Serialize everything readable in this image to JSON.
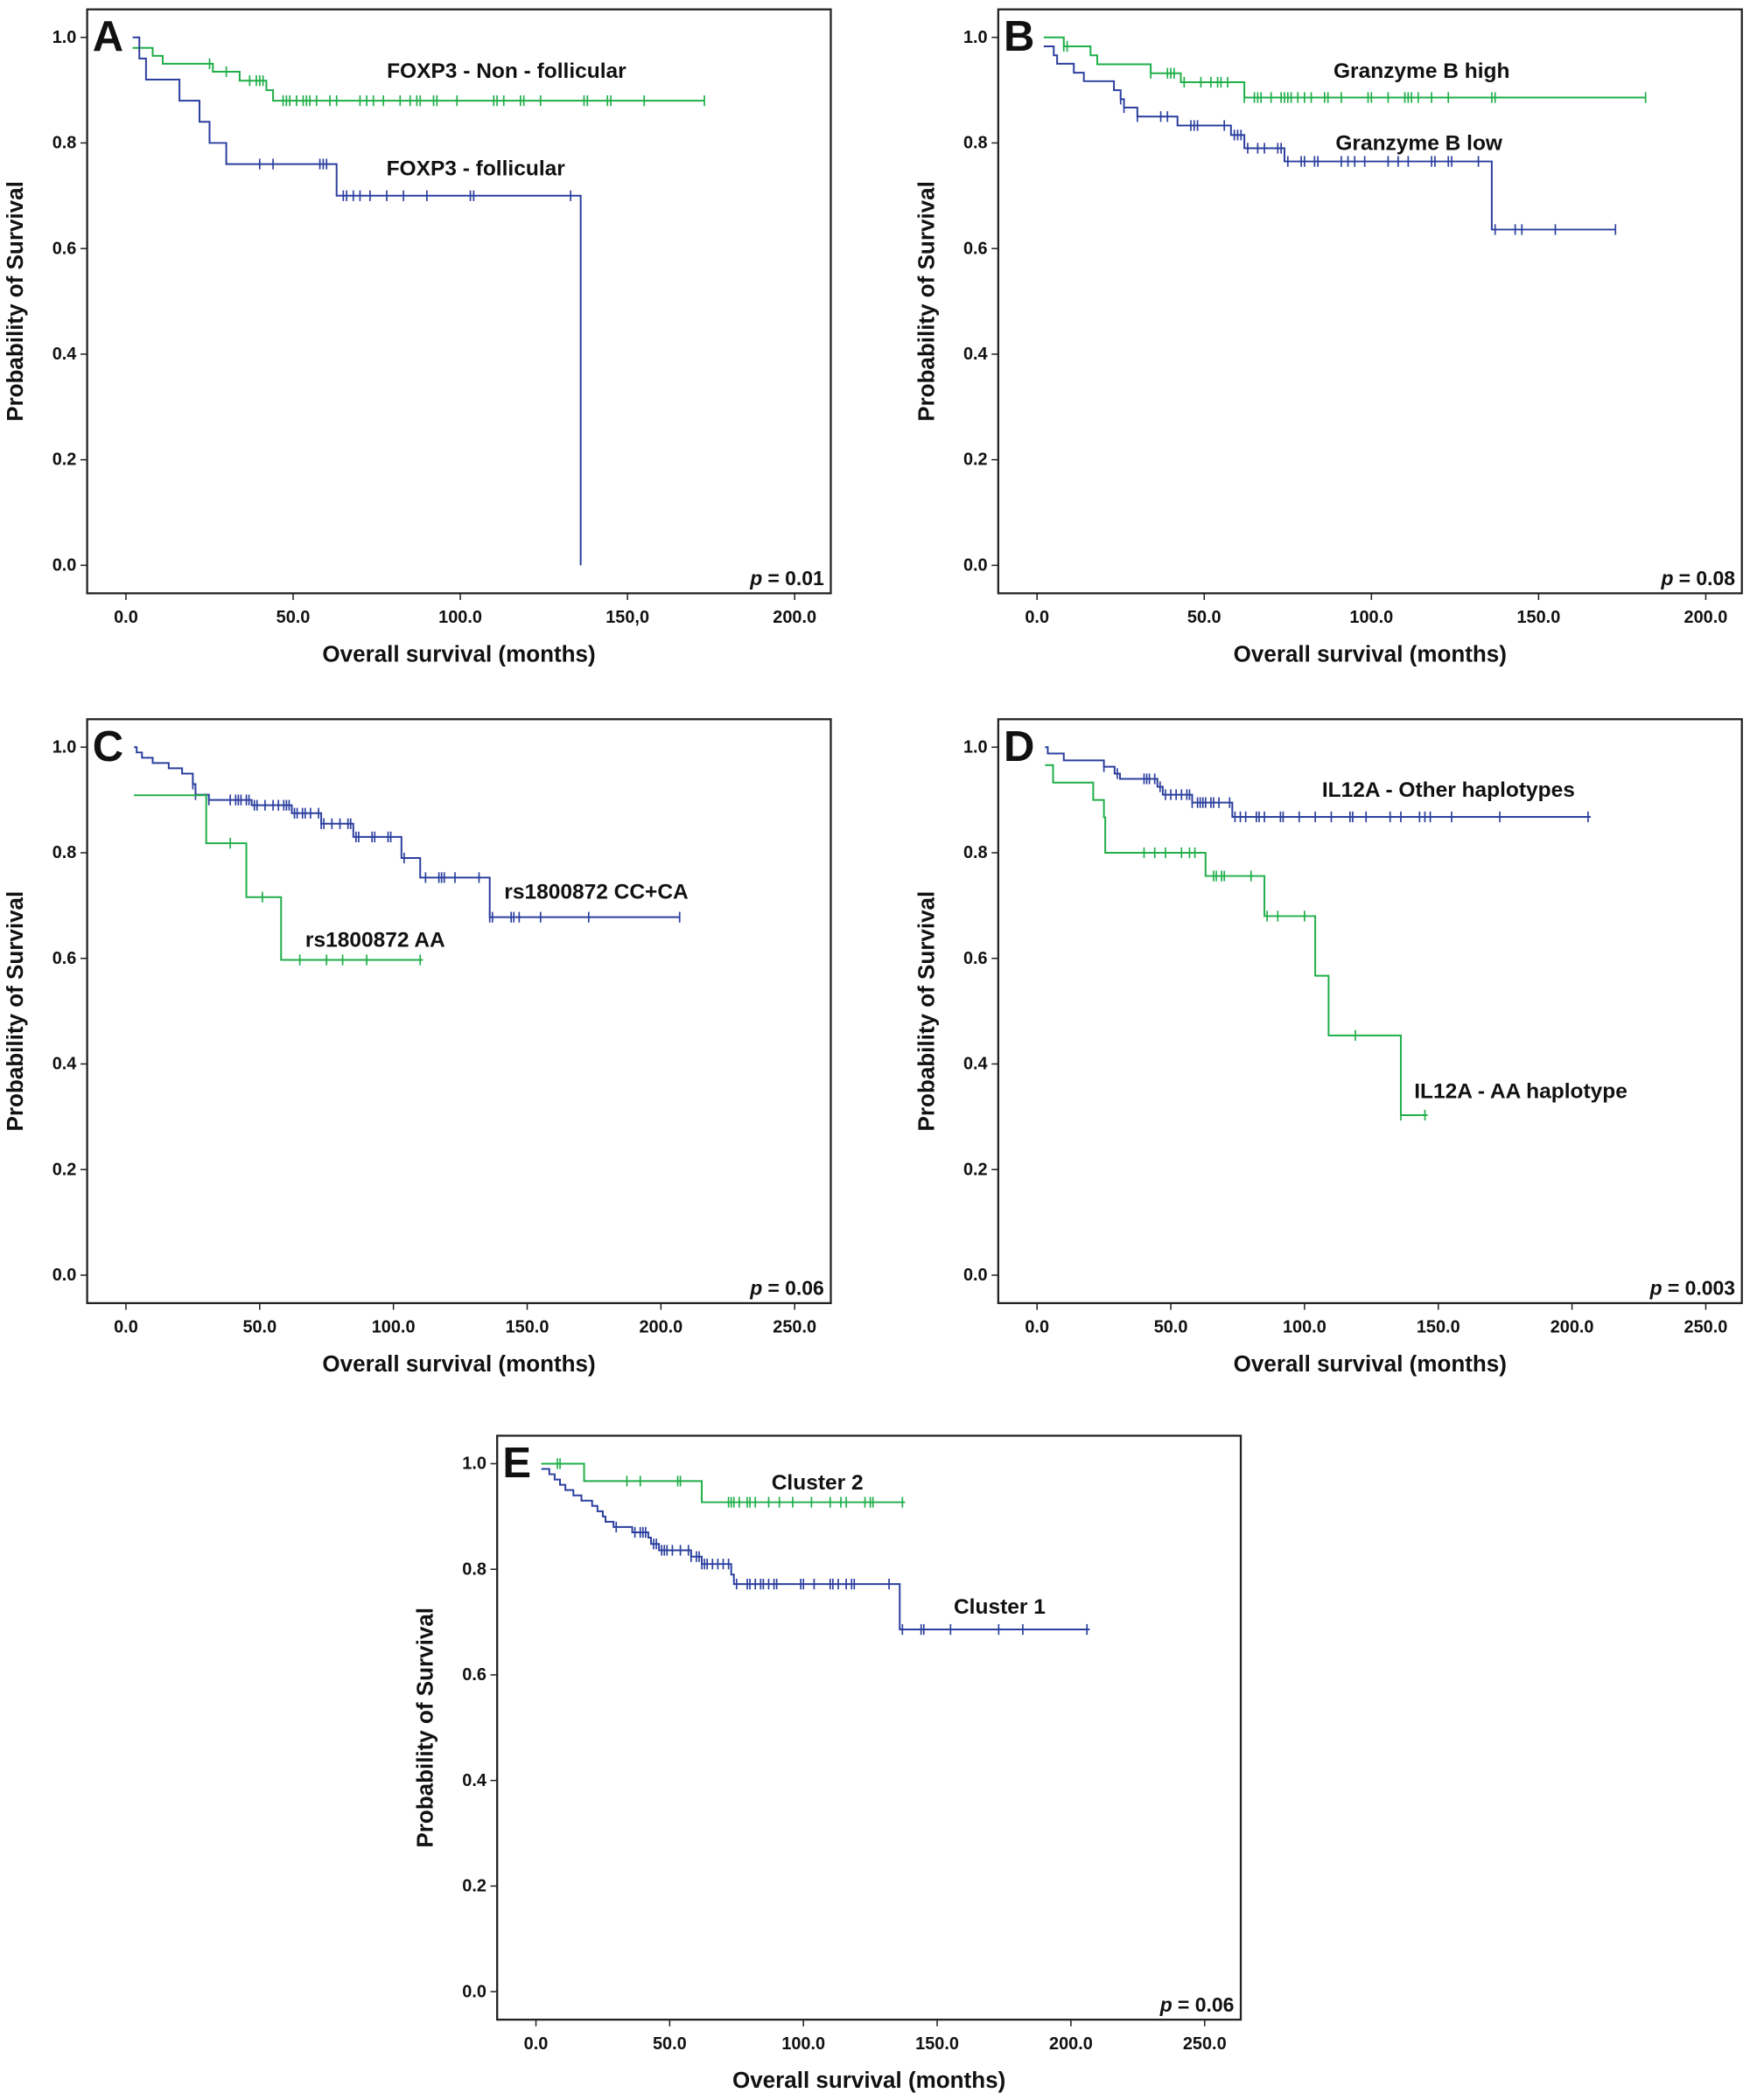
{
  "colors": {
    "green": "#1fae48",
    "blue": "#2b3f9e",
    "frame": "#222222"
  },
  "chart_data": [
    {
      "type": "line",
      "panel": "A",
      "p_value_prefix": "p",
      "p_value": "= 0.01",
      "xlabel": "Overall survival (months)",
      "ylabel": "Probability of Survival",
      "xlim": [
        -11.6,
        210.8
      ],
      "ylim": [
        -0.053,
        1.053
      ],
      "x_ticks": [
        0,
        50,
        100,
        150,
        200
      ],
      "x_tick_labels": [
        "0.0",
        "50.0",
        "100.0",
        "150,0",
        "200.0"
      ],
      "y_ticks": [
        0,
        0.2,
        0.4,
        0.6,
        0.8,
        1.0
      ],
      "y_tick_labels": [
        "0.0",
        "0.2",
        "0.4",
        "0.6",
        "0.8",
        "1.0"
      ],
      "series": [
        {
          "name": "FOXP3 - Non - follicular",
          "color": "green",
          "steps": [
            [
              2,
              0.98
            ],
            [
              8,
              0.965
            ],
            [
              11,
              0.95
            ],
            [
              26,
              0.935
            ],
            [
              34,
              0.918
            ],
            [
              42,
              0.9
            ],
            [
              44,
              0.88
            ]
          ],
          "end": 173,
          "censored": [
            25,
            30,
            37,
            39,
            40,
            41,
            47,
            48,
            49,
            51,
            53,
            54,
            55,
            57,
            61,
            63,
            70,
            72,
            74,
            77,
            82,
            85,
            87,
            88,
            92,
            93,
            99,
            110,
            111,
            113,
            118,
            119,
            124,
            137,
            138,
            144,
            145,
            155,
            173
          ]
        },
        {
          "name": "FOXP3 - follicular",
          "color": "blue",
          "steps": [
            [
              2,
              1.0
            ],
            [
              4,
              0.96
            ],
            [
              6,
              0.92
            ],
            [
              16,
              0.88
            ],
            [
              22,
              0.84
            ],
            [
              25,
              0.8
            ],
            [
              30,
              0.76
            ],
            [
              63,
              0.7
            ],
            [
              136,
              0.0
            ]
          ],
          "end": 136,
          "censored": [
            40,
            44,
            58,
            59,
            60,
            65,
            66,
            68,
            70,
            73,
            78,
            83,
            90,
            103,
            104,
            133
          ]
        }
      ]
    },
    {
      "type": "line",
      "panel": "B",
      "p_value_prefix": "p",
      "p_value": "= 0.08",
      "xlabel": "Overall survival (months)",
      "ylabel": "Probability of Survival",
      "xlim": [
        -11.6,
        210.8
      ],
      "ylim": [
        -0.053,
        1.053
      ],
      "x_ticks": [
        0,
        50,
        100,
        150,
        200
      ],
      "x_tick_labels": [
        "0.0",
        "50.0",
        "100.0",
        "150.0",
        "200.0"
      ],
      "y_ticks": [
        0,
        0.2,
        0.4,
        0.6,
        0.8,
        1.0
      ],
      "y_tick_labels": [
        "0.0",
        "0.2",
        "0.4",
        "0.6",
        "0.8",
        "1.0"
      ],
      "series": [
        {
          "name": "Granzyme B high",
          "color": "green",
          "steps": [
            [
              2,
              1.0
            ],
            [
              8,
              0.983
            ],
            [
              16,
              0.966
            ],
            [
              18,
              0.949
            ],
            [
              34,
              0.932
            ],
            [
              43,
              0.915
            ],
            [
              62,
              0.886
            ]
          ],
          "end": 182,
          "censored": [
            8,
            9,
            34,
            39,
            40,
            41,
            44,
            49,
            52,
            54,
            55,
            57,
            62,
            65,
            66,
            67,
            70,
            73,
            74,
            75,
            76,
            78,
            80,
            82,
            86,
            87,
            91,
            99,
            100,
            105,
            110,
            111,
            112,
            114,
            118,
            123,
            136,
            137,
            182
          ]
        },
        {
          "name": "Granzyme B low",
          "color": "blue",
          "steps": [
            [
              2,
              0.983
            ],
            [
              5,
              0.966
            ],
            [
              6,
              0.95
            ],
            [
              11,
              0.933
            ],
            [
              14,
              0.917
            ],
            [
              23,
              0.9
            ],
            [
              25,
              0.883
            ],
            [
              26,
              0.867
            ],
            [
              30,
              0.85
            ],
            [
              42,
              0.833
            ],
            [
              58,
              0.815
            ],
            [
              62,
              0.79
            ],
            [
              74,
              0.765
            ],
            [
              136,
              0.636
            ]
          ],
          "end": 173,
          "censored": [
            25,
            26,
            30,
            37,
            39,
            46,
            47,
            48,
            56,
            59,
            60,
            61,
            63,
            66,
            68,
            72,
            73,
            75,
            79,
            80,
            83,
            84,
            91,
            93,
            95,
            98,
            105,
            108,
            111,
            118,
            119,
            123,
            124,
            132,
            137,
            143,
            145,
            155,
            173
          ]
        }
      ]
    },
    {
      "type": "line",
      "panel": "C",
      "p_value_prefix": "p",
      "p_value": "= 0.06",
      "xlabel": "Overall survival (months)",
      "ylabel": "Probability of Survival",
      "xlim": [
        -14.5,
        263.5
      ],
      "ylim": [
        -0.053,
        1.053
      ],
      "x_ticks": [
        0,
        50,
        100,
        150,
        200,
        250
      ],
      "x_tick_labels": [
        "0.0",
        "50.0",
        "100.0",
        "150.0",
        "200.0",
        "250.0"
      ],
      "y_ticks": [
        0,
        0.2,
        0.4,
        0.6,
        0.8,
        1.0
      ],
      "y_tick_labels": [
        "0.0",
        "0.2",
        "0.4",
        "0.6",
        "0.8",
        "1.0"
      ],
      "series": [
        {
          "name": "rs1800872 CC+CA",
          "color": "blue",
          "steps": [
            [
              3,
              1.0
            ],
            [
              4,
              0.99
            ],
            [
              6,
              0.98
            ],
            [
              10,
              0.97
            ],
            [
              16,
              0.96
            ],
            [
              21,
              0.95
            ],
            [
              25,
              0.93
            ],
            [
              26,
              0.91
            ],
            [
              31,
              0.9
            ],
            [
              47,
              0.89
            ],
            [
              62,
              0.875
            ],
            [
              73,
              0.855
            ],
            [
              85,
              0.83
            ],
            [
              103,
              0.79
            ],
            [
              110,
              0.753
            ],
            [
              136,
              0.678
            ]
          ],
          "end": 207,
          "censored": [
            25,
            26,
            31,
            39,
            41,
            42,
            43,
            45,
            46,
            48,
            49,
            52,
            55,
            57,
            59,
            60,
            61,
            63,
            64,
            66,
            67,
            69,
            72,
            73,
            74,
            77,
            80,
            83,
            84,
            86,
            87,
            92,
            93,
            98,
            99,
            104,
            112,
            117,
            118,
            119,
            123,
            132,
            136,
            137,
            144,
            145,
            147,
            155,
            173,
            207
          ]
        },
        {
          "name": "rs1800872 AA",
          "color": "green",
          "steps": [
            [
              3,
              0.909
            ],
            [
              30,
              0.818
            ],
            [
              45,
              0.716
            ],
            [
              58,
              0.597
            ]
          ],
          "end": 111,
          "censored": [
            39,
            51,
            65,
            75,
            81,
            90,
            110
          ]
        }
      ]
    },
    {
      "type": "line",
      "panel": "D",
      "p_value_prefix": "p",
      "p_value": "= 0.003",
      "xlabel": "Overall survival (months)",
      "ylabel": "Probability of Survival",
      "xlim": [
        -14.5,
        263.5
      ],
      "ylim": [
        -0.053,
        1.053
      ],
      "x_ticks": [
        0,
        50,
        100,
        150,
        200,
        250
      ],
      "x_tick_labels": [
        "0.0",
        "50.0",
        "100.0",
        "150.0",
        "200.0",
        "250.0"
      ],
      "y_ticks": [
        0,
        0.2,
        0.4,
        0.6,
        0.8,
        1.0
      ],
      "y_tick_labels": [
        "0.0",
        "0.2",
        "0.4",
        "0.6",
        "0.8",
        "1.0"
      ],
      "series": [
        {
          "name": "IL12A - Other haplotypes",
          "color": "blue",
          "steps": [
            [
              3,
              1.0
            ],
            [
              4,
              0.988
            ],
            [
              10,
              0.975
            ],
            [
              25,
              0.963
            ],
            [
              29,
              0.95
            ],
            [
              31,
              0.94
            ],
            [
              45,
              0.925
            ],
            [
              47,
              0.91
            ],
            [
              58,
              0.895
            ],
            [
              73,
              0.868
            ]
          ],
          "end": 207,
          "censored": [
            25,
            30,
            40,
            41,
            42,
            44,
            46,
            48,
            50,
            52,
            54,
            56,
            57,
            58,
            60,
            61,
            62,
            63,
            65,
            66,
            68,
            72,
            74,
            76,
            78,
            82,
            83,
            85,
            91,
            92,
            98,
            104,
            110,
            117,
            118,
            123,
            132,
            136,
            143,
            145,
            147,
            155,
            173,
            206
          ]
        },
        {
          "name": "IL12A - AA haplotype",
          "color": "green",
          "steps": [
            [
              3,
              0.966
            ],
            [
              6,
              0.933
            ],
            [
              21,
              0.9
            ],
            [
              25,
              0.867
            ],
            [
              25.5,
              0.8
            ],
            [
              63,
              0.756
            ],
            [
              85,
              0.68
            ],
            [
              104,
              0.567
            ],
            [
              109,
              0.454
            ],
            [
              136,
              0.303
            ]
          ],
          "end": 146,
          "censored": [
            40,
            44,
            48,
            54,
            57,
            59,
            66,
            67,
            69,
            70,
            80,
            86,
            90,
            100,
            119,
            136,
            145
          ]
        }
      ]
    },
    {
      "type": "line",
      "panel": "E",
      "p_value_prefix": "p",
      "p_value": "= 0.06",
      "xlabel": "Overall survival (months)",
      "ylabel": "Probability of Survival",
      "xlim": [
        -14.5,
        263.5
      ],
      "ylim": [
        -0.053,
        1.053
      ],
      "x_ticks": [
        0,
        50,
        100,
        150,
        200,
        250
      ],
      "x_tick_labels": [
        "0.0",
        "50.0",
        "100.0",
        "150.0",
        "200.0",
        "250.0"
      ],
      "y_ticks": [
        0,
        0.2,
        0.4,
        0.6,
        0.8,
        1.0
      ],
      "y_tick_labels": [
        "0.0",
        "0.2",
        "0.4",
        "0.6",
        "0.8",
        "1.0"
      ],
      "series": [
        {
          "name": "Cluster 2",
          "color": "green",
          "steps": [
            [
              2,
              1.0
            ],
            [
              18,
              0.967
            ],
            [
              62,
              0.927
            ]
          ],
          "end": 138,
          "censored": [
            8,
            9,
            34,
            39,
            53,
            54,
            72,
            73,
            74,
            76,
            79,
            80,
            82,
            87,
            91,
            96,
            103,
            110,
            114,
            116,
            123,
            125,
            126,
            137
          ]
        },
        {
          "name": "Cluster 1",
          "color": "blue",
          "steps": [
            [
              2,
              0.99
            ],
            [
              5,
              0.98
            ],
            [
              7,
              0.97
            ],
            [
              9,
              0.96
            ],
            [
              11,
              0.95
            ],
            [
              14,
              0.94
            ],
            [
              17,
              0.93
            ],
            [
              21,
              0.92
            ],
            [
              23,
              0.91
            ],
            [
              25,
              0.9
            ],
            [
              26,
              0.89
            ],
            [
              29,
              0.88
            ],
            [
              36,
              0.87
            ],
            [
              42,
              0.86
            ],
            [
              43,
              0.848
            ],
            [
              46,
              0.836
            ],
            [
              58,
              0.824
            ],
            [
              62,
              0.81
            ],
            [
              73,
              0.79
            ],
            [
              74,
              0.772
            ],
            [
              136,
              0.686
            ]
          ],
          "end": 207,
          "censored": [
            30,
            37,
            39,
            40,
            41,
            44,
            45,
            47,
            48,
            49,
            51,
            54,
            57,
            58,
            60,
            61,
            62,
            63,
            64,
            66,
            68,
            70,
            72,
            75,
            79,
            80,
            82,
            84,
            85,
            87,
            89,
            90,
            99,
            100,
            104,
            110,
            111,
            113,
            116,
            118,
            119,
            132,
            137,
            144,
            145,
            155,
            173,
            182,
            206
          ]
        }
      ]
    }
  ]
}
